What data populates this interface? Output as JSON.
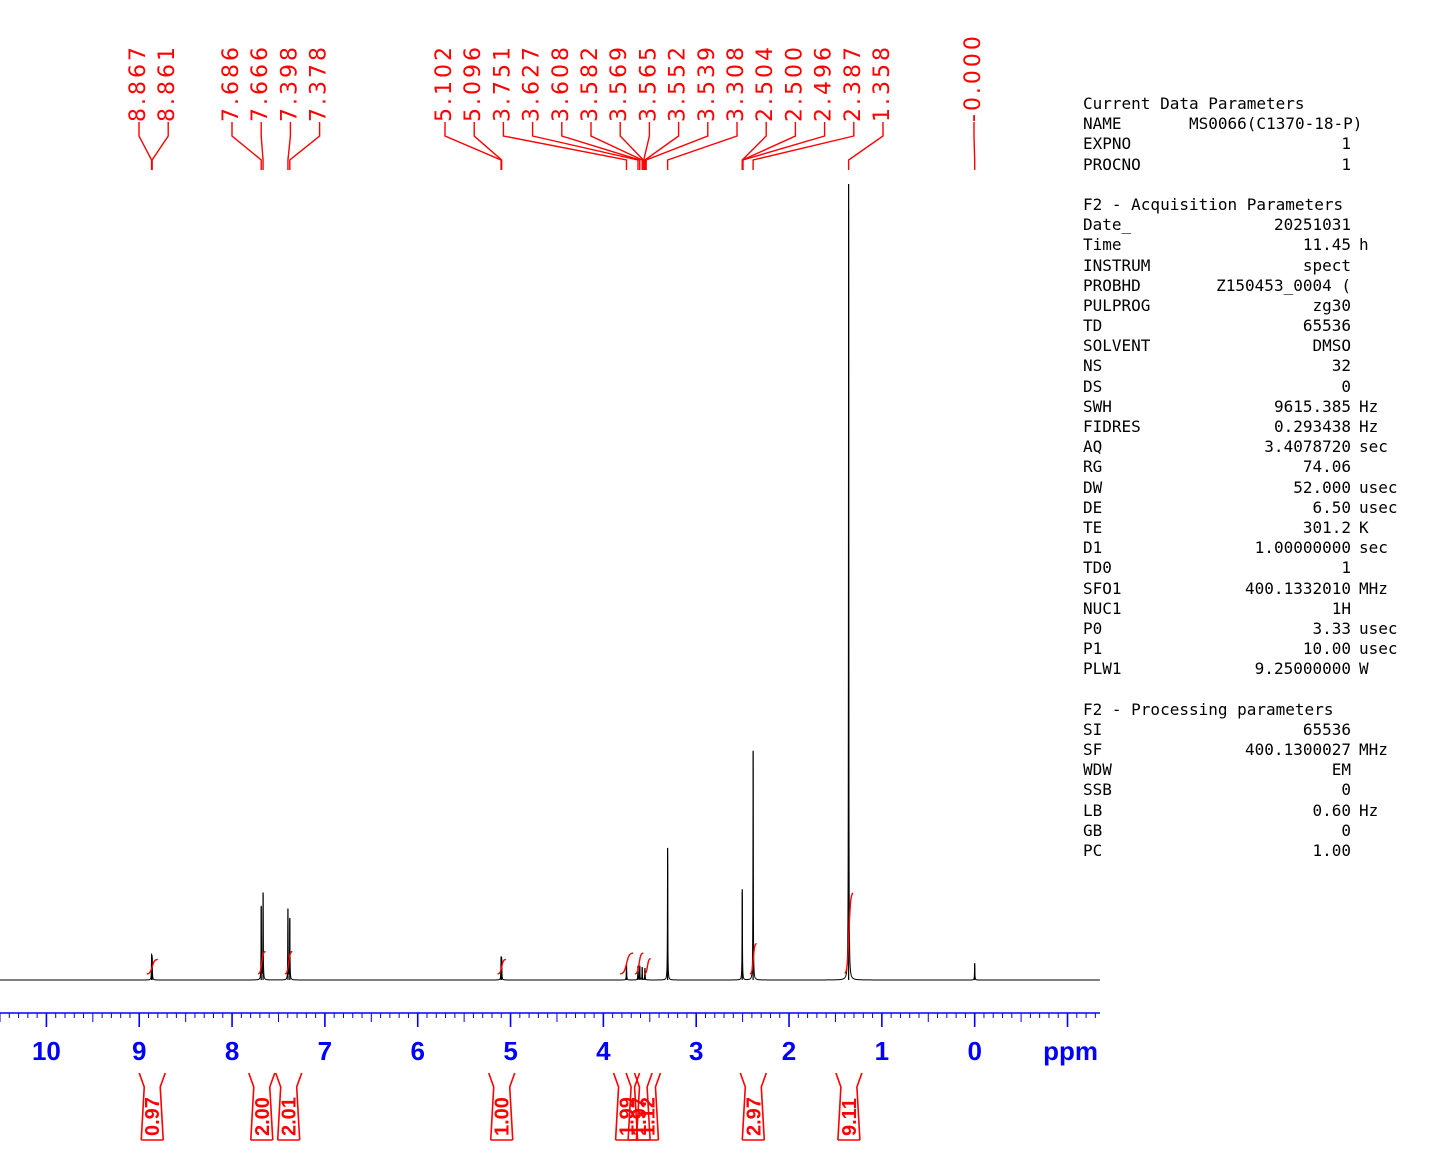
{
  "chart_data": {
    "type": "line",
    "xlabel": "ppm",
    "xlim": [
      10.5,
      -1.35
    ],
    "x_ticks": [
      "10",
      "9",
      "8",
      "7",
      "6",
      "5",
      "4",
      "3",
      "2",
      "1",
      "0"
    ],
    "peak_labels": [
      "8.867",
      "8.861",
      "7.686",
      "7.666",
      "7.398",
      "7.378",
      "5.102",
      "5.096",
      "3.751",
      "3.627",
      "3.608",
      "3.582",
      "3.569",
      "3.565",
      "3.552",
      "3.539",
      "3.308",
      "2.504",
      "2.500",
      "2.496",
      "2.387",
      "1.358",
      "-0.000"
    ],
    "peaks": [
      {
        "ppm": 8.867,
        "height": 0.03
      },
      {
        "ppm": 8.861,
        "height": 0.028
      },
      {
        "ppm": 7.686,
        "height": 0.092
      },
      {
        "ppm": 7.666,
        "height": 0.11
      },
      {
        "ppm": 7.398,
        "height": 0.089
      },
      {
        "ppm": 7.378,
        "height": 0.078
      },
      {
        "ppm": 5.102,
        "height": 0.028
      },
      {
        "ppm": 5.096,
        "height": 0.026
      },
      {
        "ppm": 3.751,
        "height": 0.02
      },
      {
        "ppm": 3.627,
        "height": 0.018
      },
      {
        "ppm": 3.608,
        "height": 0.018
      },
      {
        "ppm": 3.582,
        "height": 0.016
      },
      {
        "ppm": 3.552,
        "height": 0.015
      },
      {
        "ppm": 3.308,
        "height": 0.166
      },
      {
        "ppm": 2.504,
        "height": 0.114
      },
      {
        "ppm": 2.387,
        "height": 0.288
      },
      {
        "ppm": 1.358,
        "height": 1.0
      },
      {
        "ppm": 0.0,
        "height": 0.021
      }
    ],
    "integrals": [
      {
        "value": "0.97",
        "from": 8.92,
        "to": 8.8,
        "curve_top": 0.026
      },
      {
        "value": "2.00",
        "from": 7.72,
        "to": 7.64,
        "curve_top": 0.036
      },
      {
        "value": "2.01",
        "from": 7.43,
        "to": 7.35,
        "curve_top": 0.036
      },
      {
        "value": "1.00",
        "from": 5.14,
        "to": 5.05,
        "curve_top": 0.026
      },
      {
        "value": "1.99",
        "from": 3.82,
        "to": 3.68,
        "curve_top": 0.034
      },
      {
        "value": "1.97",
        "from": 3.66,
        "to": 3.57,
        "curve_top": 0.034
      },
      {
        "value": "1.12",
        "from": 3.56,
        "to": 3.49,
        "curve_top": 0.027
      },
      {
        "value": "2.97",
        "from": 2.42,
        "to": 2.35,
        "curve_top": 0.046
      },
      {
        "value": "9.11",
        "from": 1.4,
        "to": 1.31,
        "curve_top": 0.11
      }
    ],
    "colors": {
      "spectrum": "#000000",
      "labels": "#ff0000",
      "axis": "#0000ff"
    }
  },
  "parameters": [
    {
      "title": "Current Data Parameters",
      "rows": [
        {
          "key": "NAME",
          "value": "MS0066(C1370-18-P)",
          "unit": "",
          "full": true
        },
        {
          "key": "EXPNO",
          "value": "1",
          "unit": ""
        },
        {
          "key": "PROCNO",
          "value": "1",
          "unit": ""
        }
      ]
    },
    {
      "title": "F2 - Acquisition Parameters",
      "rows": [
        {
          "key": "Date_",
          "value": "20251031",
          "unit": ""
        },
        {
          "key": "Time",
          "value": "11.45",
          "unit": "h"
        },
        {
          "key": "INSTRUM",
          "value": "spect",
          "unit": ""
        },
        {
          "key": "PROBHD",
          "value": "Z150453_0004 (",
          "unit": ""
        },
        {
          "key": "PULPROG",
          "value": "zg30",
          "unit": ""
        },
        {
          "key": "TD",
          "value": "65536",
          "unit": ""
        },
        {
          "key": "SOLVENT",
          "value": "DMSO",
          "unit": ""
        },
        {
          "key": "NS",
          "value": "32",
          "unit": ""
        },
        {
          "key": "DS",
          "value": "0",
          "unit": ""
        },
        {
          "key": "SWH",
          "value": "9615.385",
          "unit": "Hz"
        },
        {
          "key": "FIDRES",
          "value": "0.293438",
          "unit": "Hz"
        },
        {
          "key": "AQ",
          "value": "3.4078720",
          "unit": "sec"
        },
        {
          "key": "RG",
          "value": "74.06",
          "unit": ""
        },
        {
          "key": "DW",
          "value": "52.000",
          "unit": "usec"
        },
        {
          "key": "DE",
          "value": "6.50",
          "unit": "usec"
        },
        {
          "key": "TE",
          "value": "301.2",
          "unit": "K"
        },
        {
          "key": "D1",
          "value": "1.00000000",
          "unit": "sec"
        },
        {
          "key": "TD0",
          "value": "1",
          "unit": ""
        },
        {
          "key": "SFO1",
          "value": "400.1332010",
          "unit": "MHz"
        },
        {
          "key": "NUC1",
          "value": "1H",
          "unit": ""
        },
        {
          "key": "P0",
          "value": "3.33",
          "unit": "usec"
        },
        {
          "key": "P1",
          "value": "10.00",
          "unit": "usec"
        },
        {
          "key": "PLW1",
          "value": "9.25000000",
          "unit": "W"
        }
      ]
    },
    {
      "title": "F2 - Processing parameters",
      "rows": [
        {
          "key": "SI",
          "value": "65536",
          "unit": ""
        },
        {
          "key": "SF",
          "value": "400.1300027",
          "unit": "MHz"
        },
        {
          "key": "WDW",
          "value": "EM",
          "unit": ""
        },
        {
          "key": "SSB",
          "value": "0",
          "unit": ""
        },
        {
          "key": "LB",
          "value": "0.60",
          "unit": "Hz"
        },
        {
          "key": "GB",
          "value": "0",
          "unit": ""
        },
        {
          "key": "PC",
          "value": "1.00",
          "unit": ""
        }
      ]
    }
  ]
}
